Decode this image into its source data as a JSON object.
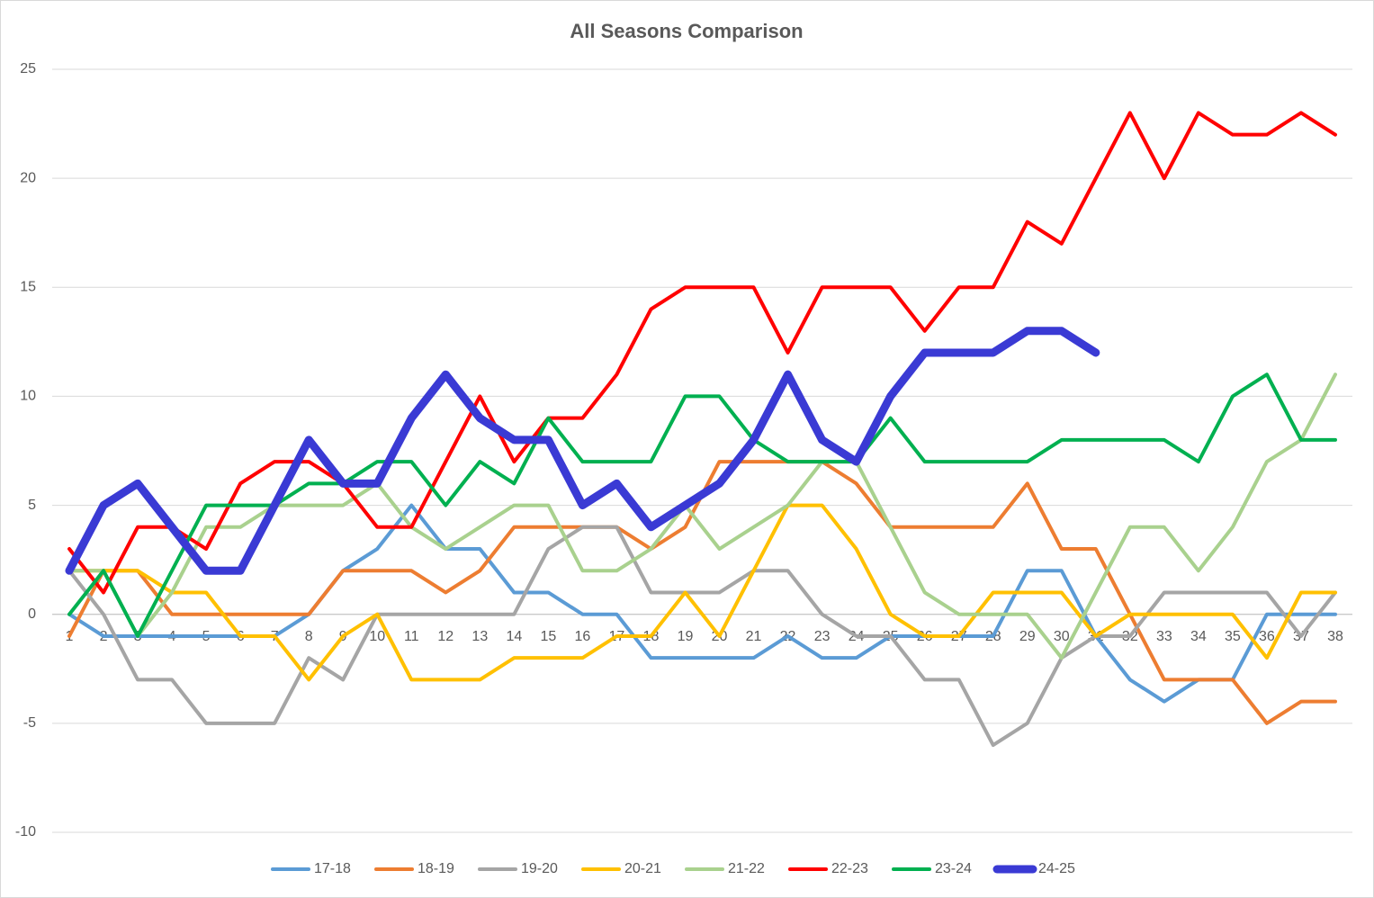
{
  "chart_data": {
    "type": "line",
    "title": "All Seasons Comparison",
    "categories": [
      "1",
      "2",
      "3",
      "4",
      "5",
      "6",
      "7",
      "8",
      "9",
      "10",
      "11",
      "12",
      "13",
      "14",
      "15",
      "16",
      "17",
      "18",
      "19",
      "20",
      "21",
      "22",
      "23",
      "24",
      "25",
      "26",
      "27",
      "28",
      "29",
      "30",
      "31",
      "32",
      "33",
      "34",
      "35",
      "36",
      "37",
      "38"
    ],
    "ylim": [
      -10,
      25
    ],
    "yticks": [
      -10,
      -5,
      0,
      5,
      10,
      15,
      20,
      25
    ],
    "grid": true,
    "legend": "bottom",
    "series": [
      {
        "name": "17-18",
        "color": "#5b9bd5",
        "line_width": 4,
        "values": [
          0,
          -1,
          -1,
          -1,
          -1,
          -1,
          -1,
          0,
          2,
          3,
          5,
          3,
          3,
          1,
          1,
          0,
          0,
          -2,
          -2,
          -2,
          -2,
          -1,
          -2,
          -2,
          -1,
          -1,
          -1,
          -1,
          2,
          2,
          -1,
          -3,
          -4,
          -3,
          -3,
          0,
          0,
          0
        ]
      },
      {
        "name": "18-19",
        "color": "#ed7d31",
        "line_width": 4,
        "values": [
          -1,
          2,
          2,
          0,
          0,
          0,
          0,
          0,
          2,
          2,
          2,
          1,
          2,
          4,
          4,
          4,
          4,
          3,
          4,
          7,
          7,
          7,
          7,
          6,
          4,
          4,
          4,
          4,
          6,
          3,
          3,
          0,
          -3,
          -3,
          -3,
          -5,
          -4,
          -4
        ]
      },
      {
        "name": "19-20",
        "color": "#a5a5a5",
        "line_width": 4,
        "values": [
          2,
          0,
          -3,
          -3,
          -5,
          -5,
          -5,
          -2,
          -3,
          0,
          0,
          0,
          0,
          0,
          3,
          4,
          4,
          1,
          1,
          1,
          2,
          2,
          0,
          -1,
          -1,
          -3,
          -3,
          -6,
          -5,
          -2,
          -1,
          -1,
          1,
          1,
          1,
          1,
          -1,
          1
        ]
      },
      {
        "name": "20-21",
        "color": "#ffc000",
        "line_width": 4,
        "values": [
          2,
          2,
          2,
          1,
          1,
          -1,
          -1,
          -3,
          -1,
          0,
          -3,
          -3,
          -3,
          -2,
          -2,
          -2,
          -1,
          -1,
          1,
          -1,
          2,
          5,
          5,
          3,
          0,
          -1,
          -1,
          1,
          1,
          1,
          -1,
          0,
          0,
          0,
          0,
          -2,
          1,
          1
        ]
      },
      {
        "name": "21-22",
        "color": "#a9d18e",
        "line_width": 4,
        "values": [
          2,
          2,
          -1,
          1,
          4,
          4,
          5,
          5,
          5,
          6,
          4,
          3,
          4,
          5,
          5,
          2,
          2,
          3,
          5,
          3,
          4,
          5,
          7,
          7,
          4,
          1,
          0,
          0,
          0,
          -2,
          1,
          4,
          4,
          2,
          4,
          7,
          8,
          11
        ]
      },
      {
        "name": "22-23",
        "color": "#ff0000",
        "line_width": 4,
        "values": [
          3,
          1,
          4,
          4,
          3,
          6,
          7,
          7,
          6,
          4,
          4,
          7,
          10,
          7,
          9,
          9,
          11,
          14,
          15,
          15,
          15,
          12,
          15,
          15,
          15,
          13,
          15,
          15,
          18,
          17,
          20,
          23,
          20,
          23,
          22,
          22,
          23,
          22
        ]
      },
      {
        "name": "23-24",
        "color": "#00b050",
        "line_width": 4,
        "values": [
          0,
          2,
          -1,
          2,
          5,
          5,
          5,
          6,
          6,
          7,
          7,
          5,
          7,
          6,
          9,
          7,
          7,
          7,
          10,
          10,
          8,
          7,
          7,
          7,
          9,
          7,
          7,
          7,
          7,
          8,
          8,
          8,
          8,
          7,
          10,
          11,
          8,
          8
        ]
      },
      {
        "name": "24-25",
        "color": "#3a3ad4",
        "line_width": 9,
        "values": [
          2,
          5,
          6,
          4,
          2,
          2,
          5,
          8,
          6,
          6,
          9,
          11,
          9,
          8,
          8,
          5,
          6,
          4,
          5,
          6,
          8,
          11,
          8,
          7,
          10,
          12,
          12,
          12,
          13,
          13,
          12,
          null,
          null,
          null,
          null,
          null,
          null,
          null
        ]
      }
    ]
  }
}
